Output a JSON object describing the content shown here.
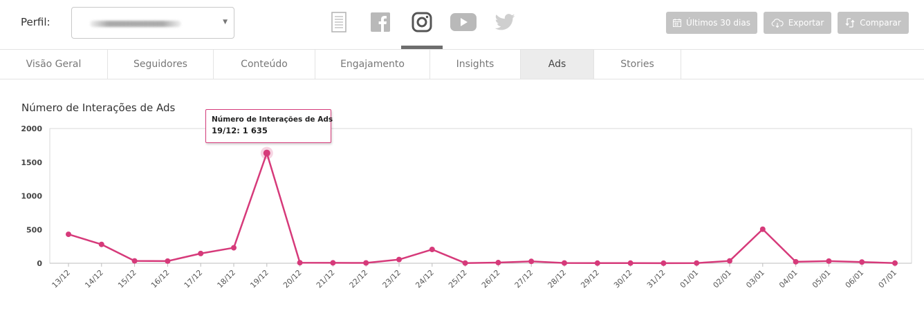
{
  "header": {
    "profile_label": "Perfil:",
    "networks": [
      {
        "name": "report-icon",
        "active": false
      },
      {
        "name": "facebook-icon",
        "active": false
      },
      {
        "name": "instagram-icon",
        "active": true
      },
      {
        "name": "youtube-icon",
        "active": false
      },
      {
        "name": "twitter-icon",
        "active": false
      }
    ],
    "buttons": {
      "period_label": "Últimos 30 dias",
      "export_label": "Exportar",
      "compare_label": "Comparar"
    }
  },
  "tabs": [
    {
      "label": "Visão Geral",
      "active": false
    },
    {
      "label": "Seguidores",
      "active": false
    },
    {
      "label": "Conteúdo",
      "active": false
    },
    {
      "label": "Engajamento",
      "active": false
    },
    {
      "label": "Insights",
      "active": false
    },
    {
      "label": "Ads",
      "active": true
    },
    {
      "label": "Stories",
      "active": false
    }
  ],
  "tooltip": {
    "title": "Número de Interações de Ads",
    "value": "19/12: 1 635"
  },
  "colors": {
    "series": "#d63a7a",
    "button_bg": "#c4c4c4",
    "active_tab_bg": "#ececec"
  },
  "chart_data": {
    "type": "line",
    "title": "Número de Interações de Ads",
    "x": [
      "13/12",
      "14/12",
      "15/12",
      "16/12",
      "17/12",
      "18/12",
      "19/12",
      "20/12",
      "21/12",
      "22/12",
      "23/12",
      "24/12",
      "25/12",
      "26/12",
      "27/12",
      "28/12",
      "29/12",
      "30/12",
      "31/12",
      "01/01",
      "02/01",
      "03/01",
      "04/01",
      "05/01",
      "06/01",
      "07/01"
    ],
    "series": [
      {
        "name": "Número de Interações de Ads",
        "values": [
          430,
          280,
          35,
          32,
          145,
          230,
          1635,
          8,
          6,
          5,
          55,
          205,
          3,
          10,
          28,
          4,
          2,
          2,
          1,
          3,
          35,
          505,
          22,
          32,
          18,
          2
        ]
      }
    ],
    "ylim": [
      0,
      2000
    ],
    "yticks": [
      0,
      500,
      1000,
      1500,
      2000
    ],
    "highlight_index": 6,
    "grid": false,
    "legend": "none"
  }
}
